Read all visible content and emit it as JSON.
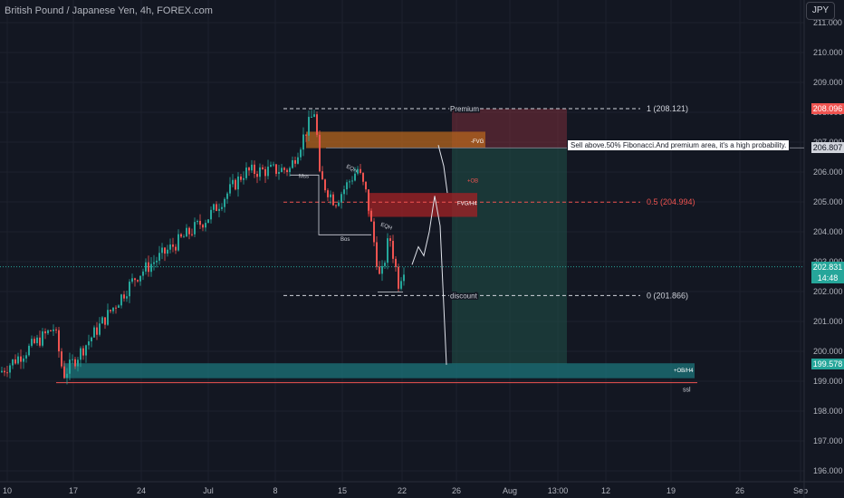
{
  "header": {
    "title": "British Pound / Japanese Yen, 4h, FOREX.com",
    "currency_button": "JPY"
  },
  "colors": {
    "bg": "#131722",
    "up": "#26a69a",
    "down": "#ef5350",
    "grid": "#1e222d",
    "axis_text": "#b2b5be",
    "premium_zone": "#7a2e3a",
    "discount_zone": "#1f4d46",
    "fvg": "#b5651d",
    "ob": "#9b2226",
    "ob_h4": "#1b6f75"
  },
  "chart_data": {
    "type": "candlestick",
    "title": "British Pound / Japanese Yen, 4h, FOREX.com",
    "yticks": [
      "196.000",
      "197.000",
      "198.000",
      "199.000",
      "200.000",
      "201.000",
      "202.000",
      "203.000",
      "204.000",
      "205.000",
      "206.000",
      "207.000",
      "208.000",
      "209.000",
      "210.000",
      "211.000"
    ],
    "ylim": [
      195.6,
      211.4
    ],
    "xticks": [
      "10",
      "17",
      "24",
      "Jul",
      "8",
      "15",
      "22",
      "26",
      "Aug",
      "13:00",
      "12",
      "19",
      "26",
      "Sep"
    ],
    "current_price": {
      "value": "202.831",
      "countdown": "14:48"
    },
    "price_labels": {
      "high": "208.096",
      "entry": "206.807",
      "target": "199.578"
    },
    "fib_levels": [
      {
        "label": "1 (208.121)",
        "value": 208.121
      },
      {
        "label": "0.5 (204.994)",
        "value": 204.994
      },
      {
        "label": "0 (201.866)",
        "value": 201.866
      }
    ],
    "annotations": {
      "premium": "Premium",
      "discount": "discount",
      "mss": "Mss",
      "bos": "Bos",
      "eqh": "EQH",
      "eqh2": "EQH",
      "fvg": "-FVG",
      "ob": "+OB",
      "fvg_h4": "FVG/H4",
      "ob_h4": "+OB/H4",
      "ssl": "ssl",
      "note": "Sell above.50% Fibonacci.And premium area, it's a high probability."
    }
  }
}
